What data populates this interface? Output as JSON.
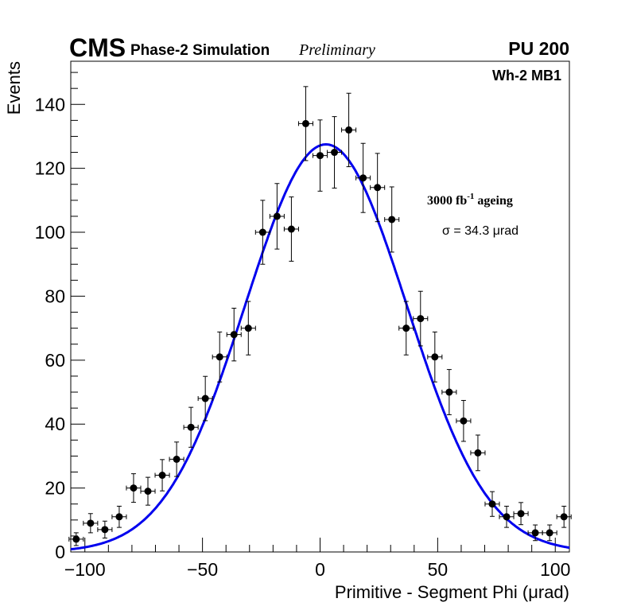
{
  "chart_data": {
    "type": "scatter",
    "title": "",
    "header": {
      "experiment": "CMS",
      "label": "Phase-2 Simulation",
      "status": "Preliminary",
      "pileup": "PU 200"
    },
    "annotations": {
      "station": "Wh-2 MB1",
      "ageing_prefix": "3000 fb",
      "ageing_sup": "-1",
      "ageing_suffix": " ageing",
      "sigma_text": "σ = 34.3 μrad"
    },
    "xlabel": "Primitive - Segment Phi (μrad)",
    "ylabel": "Events",
    "xlim": [
      -106,
      106
    ],
    "ylim": [
      0,
      153.5
    ],
    "x_ticks": [
      -100,
      -50,
      0,
      50,
      100
    ],
    "x_tick_labels": [
      "−100",
      "−50",
      "0",
      "50",
      "100"
    ],
    "y_ticks": [
      0,
      20,
      40,
      60,
      80,
      100,
      120,
      140
    ],
    "y_tick_labels": [
      "0",
      "20",
      "40",
      "60",
      "80",
      "100",
      "120",
      "140"
    ],
    "grid": false,
    "bin_width": 6.1,
    "series": [
      {
        "name": "data",
        "marker": "circle",
        "color": "#000000",
        "x": [
          -103.7,
          -97.6,
          -91.5,
          -85.4,
          -79.3,
          -73.2,
          -67.1,
          -61.0,
          -54.9,
          -48.8,
          -42.7,
          -36.6,
          -30.5,
          -24.4,
          -18.3,
          -12.2,
          -6.1,
          0.0,
          6.1,
          12.2,
          18.3,
          24.4,
          30.5,
          36.6,
          42.7,
          48.8,
          54.9,
          61.0,
          67.1,
          73.2,
          79.3,
          85.4,
          91.5,
          97.6,
          103.7
        ],
        "y": [
          4,
          9,
          7,
          11,
          20,
          19,
          24,
          29,
          39,
          48,
          61,
          68,
          70,
          100,
          105,
          101,
          134,
          124,
          125,
          132,
          117,
          114,
          104,
          70,
          73,
          61,
          50,
          41,
          31,
          15,
          11,
          12,
          6,
          6,
          11
        ]
      },
      {
        "name": "gaussian-fit",
        "type": "line",
        "color": "#0000ee",
        "amplitude": 127.5,
        "mean": 2.5,
        "sigma": 34.3
      }
    ]
  }
}
